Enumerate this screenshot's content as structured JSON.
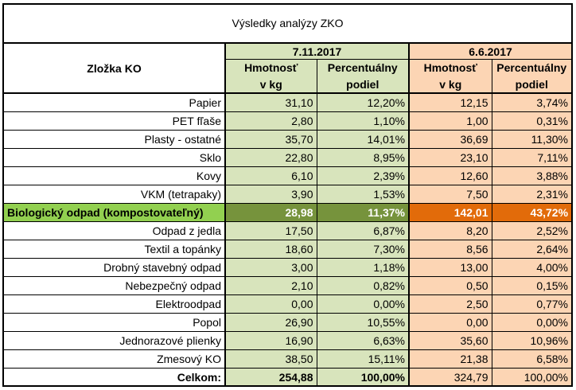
{
  "title": "Výsledky analýzy ZKO",
  "header": {
    "component_label": "Zložka KO",
    "period1": "7.11.2017",
    "period2": "6.6.2017",
    "weight_line1": "Hmotnosť",
    "weight_line2": "v kg",
    "pct_line1": "Percentuálny",
    "pct_line2": "podiel"
  },
  "colors": {
    "period1_bg": "#d8e4bc",
    "period2_bg": "#fcd5b4",
    "highlight_label_bg": "#92d050",
    "highlight_period1_bg": "#76933c",
    "highlight_period2_bg": "#e26b0a"
  },
  "rows": [
    {
      "name": "Papier",
      "w1": "31,10",
      "p1": "12,20%",
      "w2": "12,15",
      "p2": "3,74%"
    },
    {
      "name": "PET fľaše",
      "w1": "2,80",
      "p1": "1,10%",
      "w2": "1,00",
      "p2": "0,31%"
    },
    {
      "name": "Plasty - ostatné",
      "w1": "35,70",
      "p1": "14,01%",
      "w2": "36,69",
      "p2": "11,30%"
    },
    {
      "name": "Sklo",
      "w1": "22,80",
      "p1": "8,95%",
      "w2": "23,10",
      "p2": "7,11%"
    },
    {
      "name": "Kovy",
      "w1": "6,10",
      "p1": "2,39%",
      "w2": "12,60",
      "p2": "3,88%"
    },
    {
      "name": "VKM (tetrapaky)",
      "w1": "3,90",
      "p1": "1,53%",
      "w2": "7,50",
      "p2": "2,31%"
    },
    {
      "name": "Biologický odpad (kompostovateľný)",
      "w1": "28,98",
      "p1": "11,37%",
      "w2": "142,01",
      "p2": "43,72%",
      "highlight": true
    },
    {
      "name": "Odpad z jedla",
      "w1": "17,50",
      "p1": "6,87%",
      "w2": "8,20",
      "p2": "2,52%"
    },
    {
      "name": "Textil a topánky",
      "w1": "18,60",
      "p1": "7,30%",
      "w2": "8,56",
      "p2": "2,64%"
    },
    {
      "name": "Drobný stavebný odpad",
      "w1": "3,00",
      "p1": "1,18%",
      "w2": "13,00",
      "p2": "4,00%"
    },
    {
      "name": "Nebezpečný odpad",
      "w1": "2,10",
      "p1": "0,82%",
      "w2": "0,50",
      "p2": "0,15%"
    },
    {
      "name": "Elektroodpad",
      "w1": "0,00",
      "p1": "0,00%",
      "w2": "2,50",
      "p2": "0,77%"
    },
    {
      "name": "Popol",
      "w1": "26,90",
      "p1": "10,55%",
      "w2": "0,00",
      "p2": "0,00%"
    },
    {
      "name": "Jednorazové plienky",
      "w1": "16,90",
      "p1": "6,63%",
      "w2": "35,60",
      "p2": "10,96%"
    },
    {
      "name": "Zmesový KO",
      "w1": "38,50",
      "p1": "15,11%",
      "w2": "21,38",
      "p2": "6,58%"
    }
  ],
  "total": {
    "name": "Celkom:",
    "w1": "254,88",
    "p1": "100,00%",
    "w2": "324,79",
    "p2": "100,00%"
  }
}
